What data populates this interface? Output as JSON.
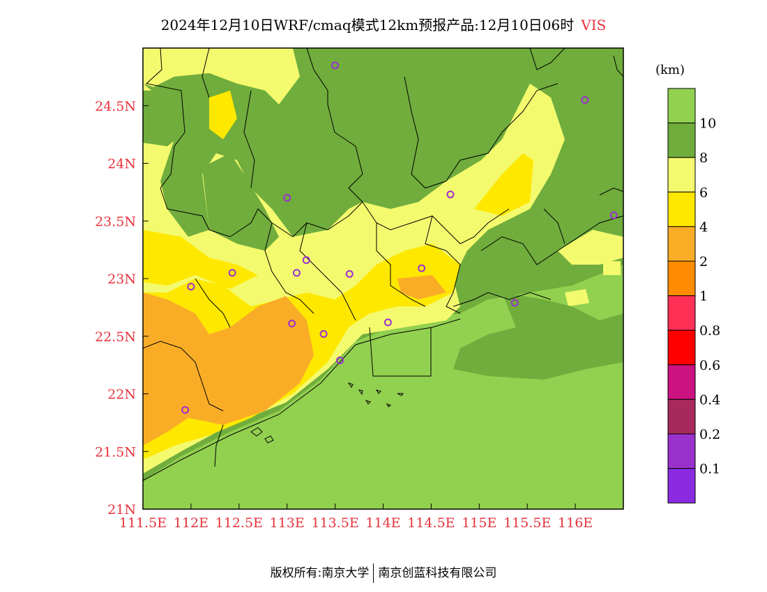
{
  "header": {
    "title": "2024年12月10日WRF/cmaq模式12km预报产品:12月10日06时",
    "variable": "VIS"
  },
  "map": {
    "lon_ticks": [
      "111.5E",
      "112E",
      "112.5E",
      "113E",
      "113.5E",
      "114E",
      "114.5E",
      "115E",
      "115.5E",
      "116E"
    ],
    "lat_ticks": [
      "21N",
      "21.5N",
      "22N",
      "22.5N",
      "23N",
      "23.5N",
      "24N",
      "24.5N"
    ],
    "stations": [
      {
        "lon": 113.5,
        "lat": 24.85
      },
      {
        "lon": 116.1,
        "lat": 24.55
      },
      {
        "lon": 113.0,
        "lat": 23.7
      },
      {
        "lon": 114.7,
        "lat": 23.73
      },
      {
        "lon": 116.4,
        "lat": 23.55
      },
      {
        "lon": 112.0,
        "lat": 22.93
      },
      {
        "lon": 112.43,
        "lat": 23.05
      },
      {
        "lon": 113.1,
        "lat": 23.05
      },
      {
        "lon": 113.2,
        "lat": 23.16
      },
      {
        "lon": 113.65,
        "lat": 23.04
      },
      {
        "lon": 114.4,
        "lat": 23.09
      },
      {
        "lon": 115.37,
        "lat": 22.79
      },
      {
        "lon": 113.05,
        "lat": 22.61
      },
      {
        "lon": 113.38,
        "lat": 22.52
      },
      {
        "lon": 114.05,
        "lat": 22.62
      },
      {
        "lon": 113.55,
        "lat": 22.29
      },
      {
        "lon": 111.94,
        "lat": 21.86
      }
    ],
    "colors": {
      "green_light": "#92d050",
      "green_dark": "#70ad3c",
      "yellow_light": "#f4fa6e",
      "yellow": "#ffe800",
      "orange_light": "#f9ad26",
      "orange": "#ff8c00"
    }
  },
  "legend": {
    "unit": "(km)",
    "labels": [
      "10",
      "8",
      "6",
      "4",
      "2",
      "1",
      "0.8",
      "0.6",
      "0.4",
      "0.2",
      "0.1"
    ],
    "colors": [
      "#92d050",
      "#70ad3c",
      "#f4fa6e",
      "#ffe800",
      "#f9ad26",
      "#ff8c00",
      "#ff2f55",
      "#ff0000",
      "#cc1180",
      "#a82a5c",
      "#9932cc",
      "#8a2be2"
    ]
  },
  "footer": {
    "left": "版权所有:南京大学",
    "right": "南京创蓝科技有限公司"
  }
}
